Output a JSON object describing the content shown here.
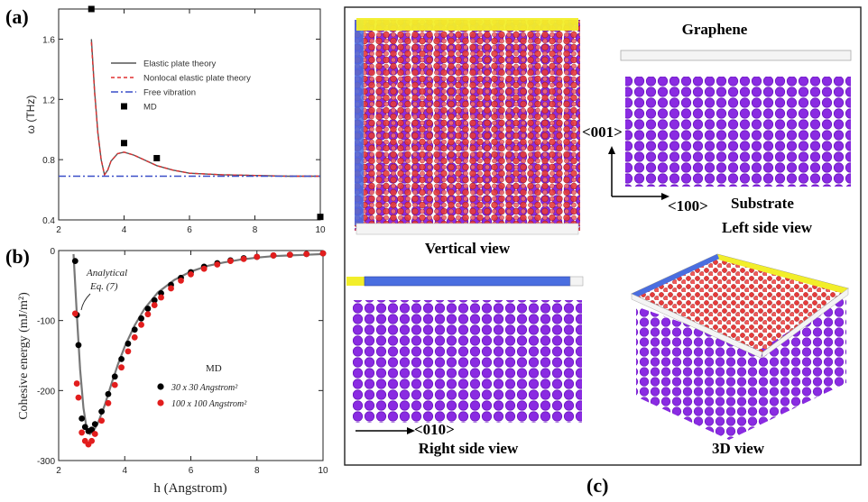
{
  "panel_labels": {
    "a": "(a)",
    "b": "(b)",
    "c": "(c)"
  },
  "chart_data": [
    {
      "type": "line",
      "panel": "(a)",
      "xlim": [
        2,
        10
      ],
      "ylim": [
        0.4,
        1.8
      ],
      "xticks": [
        2,
        4,
        6,
        8,
        10
      ],
      "yticks": [
        0.4,
        0.8,
        1.2,
        1.6
      ],
      "xtick_labels": [
        "2",
        "4",
        "6",
        "8",
        "10"
      ],
      "ytick_labels": [
        "0.4",
        "0.8",
        "1.2",
        "1.6"
      ],
      "ylabel": "ω (THz)",
      "xlabel": "",
      "legend_position": "top-right",
      "series": [
        {
          "name": "Elastic plate theory",
          "style": "solid",
          "color": "#555555",
          "x": [
            3.0,
            3.1,
            3.2,
            3.3,
            3.4,
            3.5,
            3.6,
            3.8,
            4.0,
            4.3,
            4.6,
            5.0,
            5.5,
            6.0,
            7.0,
            8.0,
            9.0,
            10.0
          ],
          "y": [
            1.6,
            1.25,
            0.98,
            0.8,
            0.7,
            0.73,
            0.79,
            0.84,
            0.85,
            0.83,
            0.8,
            0.76,
            0.73,
            0.71,
            0.7,
            0.695,
            0.69,
            0.69
          ]
        },
        {
          "name": "Nonlocal elastic plate theory",
          "style": "dashed",
          "color": "#e03030",
          "x": [
            3.0,
            3.1,
            3.2,
            3.3,
            3.4,
            3.5,
            3.6,
            3.8,
            4.0,
            4.3,
            4.6,
            5.0,
            5.5,
            6.0,
            7.0,
            8.0,
            9.0,
            10.0
          ],
          "y": [
            1.58,
            1.24,
            0.97,
            0.8,
            0.7,
            0.73,
            0.79,
            0.84,
            0.85,
            0.83,
            0.8,
            0.76,
            0.73,
            0.71,
            0.7,
            0.695,
            0.69,
            0.69
          ]
        },
        {
          "name": "Free vibration",
          "style": "dashdot",
          "color": "#3a4fc8",
          "x": [
            2,
            10
          ],
          "y": [
            0.69,
            0.69
          ]
        },
        {
          "name": "MD",
          "style": "markers",
          "color": "#000000",
          "x": [
            3.0,
            4.0,
            5.0,
            10.0
          ],
          "y": [
            1.8,
            0.91,
            0.81,
            0.42
          ]
        }
      ]
    },
    {
      "type": "scatter",
      "panel": "(b)",
      "xlim": [
        2,
        10
      ],
      "ylim": [
        -300,
        0
      ],
      "xticks": [
        2,
        4,
        6,
        8,
        10
      ],
      "yticks": [
        -300,
        -200,
        -100,
        0
      ],
      "xtick_labels": [
        "2",
        "4",
        "6",
        "8",
        "10"
      ],
      "ytick_labels": [
        "-300",
        "-200",
        "-100",
        "0"
      ],
      "xlabel": "h (Angstrom)",
      "ylabel": "Cohesive energy (mJ/m²)",
      "legend_title": "MD",
      "legend_position": "right",
      "annotation": {
        "line1": "Analytical",
        "line2": "Eq. (7)"
      },
      "analytical_curve": {
        "color": "#777777",
        "x": [
          2.45,
          2.55,
          2.65,
          2.75,
          2.85,
          2.95,
          3.05,
          3.2,
          3.4,
          3.6,
          3.8,
          4.0,
          4.3,
          4.6,
          5.0,
          5.5,
          6.0,
          6.5,
          7.0,
          7.5,
          8.0,
          8.5,
          9.0,
          9.5,
          10.0
        ],
        "y": [
          -5,
          -90,
          -170,
          -225,
          -255,
          -262,
          -258,
          -245,
          -220,
          -190,
          -162,
          -137,
          -107,
          -83,
          -60,
          -42,
          -30,
          -22,
          -17,
          -13,
          -10,
          -8,
          -7,
          -6,
          -5
        ]
      },
      "series": [
        {
          "name": "30 x 30 Angstrom²",
          "color": "#000000",
          "x": [
            2.5,
            2.55,
            2.6,
            2.7,
            2.8,
            2.9,
            3.0,
            3.1,
            3.3,
            3.5,
            3.7,
            3.9,
            4.1,
            4.3,
            4.5,
            4.7,
            4.9,
            5.1,
            5.4,
            5.7,
            6.0,
            6.4,
            6.8,
            7.2,
            7.6,
            8.0,
            8.5,
            9.0,
            9.5,
            10.0
          ],
          "y": [
            -15,
            -92,
            -135,
            -240,
            -252,
            -258,
            -256,
            -248,
            -230,
            -205,
            -180,
            -155,
            -133,
            -113,
            -97,
            -83,
            -71,
            -61,
            -49,
            -39,
            -31,
            -23,
            -18,
            -14,
            -11,
            -9,
            -7,
            -6,
            -5,
            -4
          ]
        },
        {
          "name": "100 x 100 Angstrom²",
          "color": "#e21d1d",
          "x": [
            2.5,
            2.55,
            2.6,
            2.7,
            2.8,
            2.9,
            3.0,
            3.1,
            3.3,
            3.5,
            3.7,
            3.9,
            4.1,
            4.3,
            4.5,
            4.7,
            4.9,
            5.1,
            5.4,
            5.7,
            6.0,
            6.4,
            6.8,
            7.2,
            7.6,
            8.0,
            8.5,
            9.0,
            9.5,
            10.0
          ],
          "y": [
            -90,
            -190,
            -210,
            -260,
            -272,
            -277,
            -272,
            -262,
            -243,
            -218,
            -192,
            -167,
            -144,
            -124,
            -106,
            -91,
            -78,
            -67,
            -54,
            -43,
            -34,
            -26,
            -20,
            -15,
            -12,
            -9,
            -7,
            -6,
            -5,
            -4
          ]
        }
      ]
    }
  ],
  "panel_c": {
    "labels": {
      "vertical_view": "Vertical view",
      "graphene": "Graphene",
      "dir_001": "<001>",
      "dir_100": "<100>",
      "substrate": "Substrate",
      "left_side_view": "Left side view",
      "right_side_view": "Right side view",
      "dir_010": "<010>",
      "view_3d": "3D view"
    },
    "colors": {
      "substrate": "#8a2be2",
      "graphene_red": "#e63a3a",
      "graphene_blue": "#4a6ee0",
      "edge_yellow": "#f2ee2a",
      "edge_white": "#f4f4f4"
    }
  }
}
